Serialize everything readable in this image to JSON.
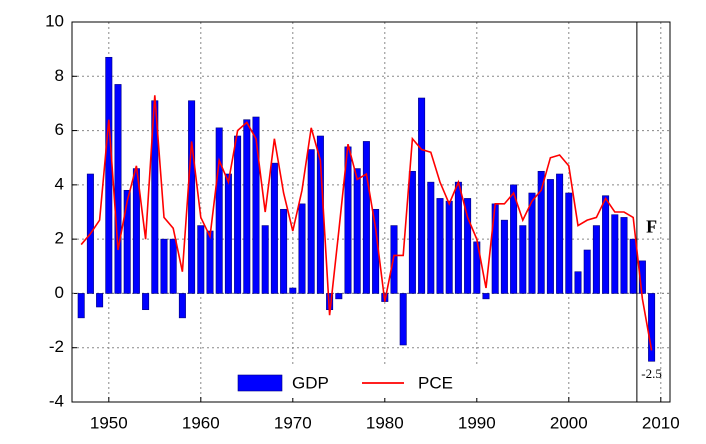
{
  "chart_data": {
    "type": "bar_line",
    "x": [
      1947,
      1948,
      1949,
      1950,
      1951,
      1952,
      1953,
      1954,
      1955,
      1956,
      1957,
      1958,
      1959,
      1960,
      1961,
      1962,
      1963,
      1964,
      1965,
      1966,
      1967,
      1968,
      1969,
      1970,
      1971,
      1972,
      1973,
      1974,
      1975,
      1976,
      1977,
      1978,
      1979,
      1980,
      1981,
      1982,
      1983,
      1984,
      1985,
      1986,
      1987,
      1988,
      1989,
      1990,
      1991,
      1992,
      1993,
      1994,
      1995,
      1996,
      1997,
      1998,
      1999,
      2000,
      2001,
      2002,
      2003,
      2004,
      2005,
      2006,
      2007,
      2008,
      2009
    ],
    "series": [
      {
        "name": "GDP",
        "kind": "bar",
        "color": "#0000ff",
        "values": [
          -0.9,
          4.4,
          -0.5,
          8.7,
          7.7,
          3.8,
          4.6,
          -0.6,
          7.1,
          2.0,
          2.0,
          -0.9,
          7.1,
          2.5,
          2.3,
          6.1,
          4.4,
          5.8,
          6.4,
          6.5,
          2.5,
          4.8,
          3.1,
          0.2,
          3.3,
          5.3,
          5.8,
          -0.6,
          -0.2,
          5.4,
          4.6,
          5.6,
          3.1,
          -0.3,
          2.5,
          -1.9,
          4.5,
          7.2,
          4.1,
          3.5,
          3.4,
          4.1,
          3.5,
          1.9,
          -0.2,
          3.3,
          2.7,
          4.0,
          2.5,
          3.7,
          4.5,
          4.2,
          4.4,
          3.7,
          0.8,
          1.6,
          2.5,
          3.6,
          2.9,
          2.8,
          2.0,
          1.2,
          -2.5
        ]
      },
      {
        "name": "PCE",
        "kind": "line",
        "color": "#ff0000",
        "values": [
          1.8,
          2.2,
          2.7,
          6.4,
          1.6,
          3.4,
          4.7,
          2.0,
          7.3,
          2.8,
          2.4,
          0.8,
          5.6,
          2.8,
          2.1,
          4.9,
          4.1,
          6.0,
          6.3,
          5.7,
          3.0,
          5.7,
          3.7,
          2.3,
          3.8,
          6.1,
          4.9,
          -0.8,
          2.3,
          5.5,
          4.2,
          4.4,
          2.4,
          -0.3,
          1.4,
          1.4,
          5.7,
          5.3,
          5.2,
          4.1,
          3.3,
          4.1,
          2.8,
          2.0,
          0.2,
          3.3,
          3.3,
          3.7,
          2.7,
          3.4,
          3.8,
          5.0,
          5.1,
          4.7,
          2.5,
          2.7,
          2.8,
          3.5,
          3.0,
          3.0,
          2.8,
          -0.2,
          -2.1
        ]
      }
    ],
    "annotations": [
      "F",
      "-2.5"
    ],
    "xlim": [
      1946,
      2011
    ],
    "xticks": [
      1950,
      1960,
      1970,
      1980,
      1990,
      2000,
      2010
    ],
    "ylim": [
      -4,
      10
    ],
    "yticks": [
      -4,
      -2,
      0,
      2,
      4,
      6,
      8,
      10
    ],
    "grid": true,
    "legend": "bottom"
  }
}
